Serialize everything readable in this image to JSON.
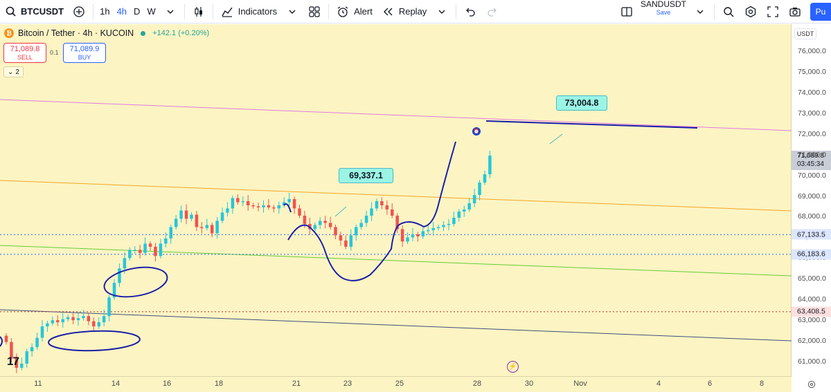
{
  "toolbar": {
    "symbol": "BTCUSDT",
    "timeframes": [
      "1h",
      "4h",
      "D",
      "W"
    ],
    "active_timeframe": "4h",
    "indicators_label": "Indicators",
    "alert_label": "Alert",
    "replay_label": "Replay",
    "layout_name": "SANDUSDT",
    "layout_save": "Save",
    "publish_label": "Pu"
  },
  "legend": {
    "title": "Bitcoin / Tether · 4h · KUCOIN",
    "change": "+142.1 (+0.20%)",
    "sell_price": "71,089.8",
    "sell_label": "SELL",
    "spread": "0.1",
    "buy_price": "71,089.9",
    "buy_label": "BUY",
    "indicator_count": "2"
  },
  "price_axis": {
    "currency": "USDT",
    "current_price": "71,089.8",
    "countdown": "03:45:34",
    "tags": [
      {
        "value": "67,133.5",
        "color": "#2962ff"
      },
      {
        "value": "66,183.6",
        "color": "#2962ff"
      },
      {
        "value": "63,408.5",
        "color": "#f23645"
      }
    ]
  },
  "callouts": {
    "level_1": "69,337.1",
    "level_2": "73,004.8"
  },
  "colors": {
    "background": "#fcf4c3",
    "up": "#26c6da",
    "down": "#ef5350",
    "drawing_ink": "#1a1fa8"
  },
  "chart_data": {
    "type": "line",
    "title": "Bitcoin / Tether · 4h · KUCOIN",
    "ylim": [
      60300,
      77300
    ],
    "y_ticks": [
      61000,
      62000,
      63000,
      64000,
      65000,
      66000,
      67000,
      68000,
      69000,
      70000,
      71000,
      72000,
      73000,
      74000,
      75000,
      76000
    ],
    "x_ticks": [
      "11",
      "14",
      "16",
      "18",
      "21",
      "23",
      "25",
      "28",
      "30",
      "Nov",
      "4",
      "6",
      "8"
    ],
    "candles_close": [
      61950,
      61150,
      60700,
      60900,
      61500,
      61700,
      62150,
      62700,
      62850,
      63000,
      62900,
      63050,
      63150,
      63000,
      63100,
      63200,
      62950,
      62700,
      62900,
      63200,
      64100,
      64800,
      65500,
      66000,
      66400,
      66400,
      66250,
      66700,
      66550,
      66100,
      66700,
      66950,
      67500,
      67900,
      68300,
      67900,
      68100,
      67500,
      67450,
      67600,
      67200,
      67800,
      68200,
      68400,
      68900,
      68700,
      68750,
      68550,
      68500,
      68450,
      68550,
      68450,
      68400,
      68550,
      68700,
      68850,
      68400,
      68050,
      67650,
      67400,
      67600,
      67800,
      67700,
      67500,
      67100,
      66850,
      66550,
      67100,
      67500,
      67700,
      68050,
      68400,
      68750,
      68550,
      68350,
      68050,
      67400,
      66800,
      67000,
      67150,
      67050,
      67300,
      67350,
      67450,
      67500,
      67600,
      67650,
      67950,
      68250,
      68350,
      68650,
      69050,
      69650,
      70050,
      70950
    ],
    "horizontal_levels": [
      67133.5,
      66183.6,
      63408.5
    ]
  }
}
